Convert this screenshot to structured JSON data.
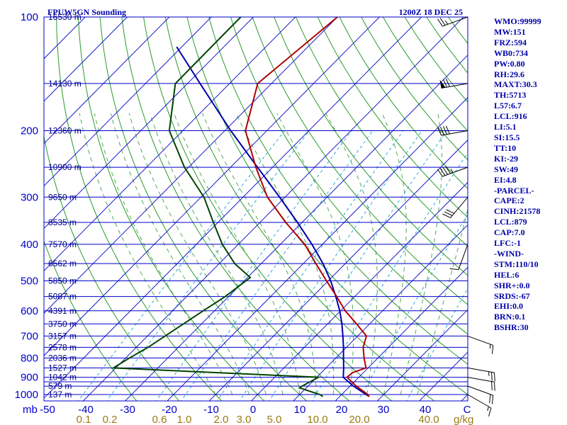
{
  "header": {
    "station": "FPUW5GN Sounding",
    "time": "1200Z 18 DEC 25"
  },
  "indices": [
    "WMO:99999",
    "MW:151",
    "FRZ:594",
    "WB0:734",
    "PW:0.80",
    "RH:29.6",
    "MAXT:30.3",
    "TH:5713",
    "L57:6.7",
    "LCL:916",
    "LI:5.1",
    "SI:15.5",
    "TT:10",
    "KI:-29",
    "SW:49",
    "EI:4.8",
    "-PARCEL-",
    "CAPE:2",
    "CINH:21578",
    "LCL:879",
    "CAP:7.0",
    "LFC:-1",
    "-WIND-",
    "STM:110/10",
    "HEL:6",
    "SHR+:0.0",
    "SRDS:-67",
    "EHI:0.0",
    "BRN:0.1",
    "BSHR:30"
  ],
  "colors": {
    "isobar": "#0000cc",
    "isotherm": "#1a1acc",
    "dry_adiabat": "#2a9a2a",
    "moist_adiabat": "#55aa55",
    "mixing_ratio": "#888888",
    "temperature": "#b00000",
    "dewpoint": "#004400",
    "parcel": "#0000aa",
    "height_label": "#000088",
    "tick_label": "#0000cc",
    "mixing_label": "#9a7a10",
    "wind": "#000000"
  },
  "chart_data": {
    "type": "skew-t",
    "pressure_axis": {
      "unit": "mb",
      "ticks": [
        100,
        200,
        300,
        400,
        500,
        600,
        700,
        800,
        900,
        1000
      ],
      "range": [
        100,
        1050
      ],
      "scale": "log"
    },
    "temperature_axis": {
      "unit": "C",
      "ticks": [
        -50,
        -40,
        -30,
        -20,
        -10,
        0,
        10,
        20,
        30,
        40
      ],
      "tick_labels": [
        "-50",
        "-40",
        "-30",
        "-20",
        "-10",
        "0",
        "10",
        "20",
        "30",
        "40",
        "C"
      ]
    },
    "mixing_ratio_axis": {
      "unit": "g/kg",
      "ticks": [
        0.1,
        0.2,
        0.6,
        1.0,
        2.0,
        3.0,
        5.0,
        10.0,
        20.0,
        40.0
      ],
      "tick_labels": [
        "0.1",
        "0.2",
        "0.6",
        "1.0",
        "2.0",
        "3.0",
        "5.0",
        "10.0",
        "20.0",
        "40.0"
      ],
      "end_label": "g/kg"
    },
    "height_labels": [
      {
        "p": 100,
        "label": "16530 m"
      },
      {
        "p": 150,
        "label": "14130 m"
      },
      {
        "p": 200,
        "label": "12360 m"
      },
      {
        "p": 250,
        "label": "10900 m"
      },
      {
        "p": 300,
        "label": "9650 m"
      },
      {
        "p": 350,
        "label": "8535 m"
      },
      {
        "p": 400,
        "label": "7570 m"
      },
      {
        "p": 450,
        "label": "6562 m"
      },
      {
        "p": 500,
        "label": "5850 m"
      },
      {
        "p": 550,
        "label": "5087 m"
      },
      {
        "p": 600,
        "label": "4391 m"
      },
      {
        "p": 650,
        "label": "3750 m"
      },
      {
        "p": 700,
        "label": "3157 m"
      },
      {
        "p": 750,
        "label": "2578 m"
      },
      {
        "p": 800,
        "label": "2036 m"
      },
      {
        "p": 850,
        "label": "1527 m"
      },
      {
        "p": 900,
        "label": "1042 m"
      },
      {
        "p": 950,
        "label": "579 m"
      },
      {
        "p": 1000,
        "label": "137 m"
      }
    ],
    "isobars": [
      100,
      150,
      200,
      250,
      300,
      350,
      400,
      450,
      500,
      550,
      600,
      650,
      700,
      750,
      800,
      850,
      900,
      925,
      950,
      1000
    ],
    "temperature": [
      {
        "p": 100,
        "t": -70.0
      },
      {
        "p": 150,
        "t": -73.3
      },
      {
        "p": 200,
        "t": -65.1
      },
      {
        "p": 250,
        "t": -54.0
      },
      {
        "p": 300,
        "t": -44.2
      },
      {
        "p": 350,
        "t": -33.9
      },
      {
        "p": 400,
        "t": -24.2
      },
      {
        "p": 450,
        "t": -17.0
      },
      {
        "p": 500,
        "t": -10.4
      },
      {
        "p": 550,
        "t": -4.3
      },
      {
        "p": 600,
        "t": 1.1
      },
      {
        "p": 650,
        "t": 6.9
      },
      {
        "p": 700,
        "t": 12.1
      },
      {
        "p": 750,
        "t": 14.0
      },
      {
        "p": 800,
        "t": 16.7
      },
      {
        "p": 850,
        "t": 19.5
      },
      {
        "p": 875,
        "t": 17.4
      },
      {
        "p": 900,
        "t": 17.2
      },
      {
        "p": 950,
        "t": 21.5
      },
      {
        "p": 1000,
        "t": 26.2
      },
      {
        "p": 1012,
        "t": 27.0
      }
    ],
    "dewpoint": [
      {
        "p": 100,
        "t": -93.0
      },
      {
        "p": 150,
        "t": -92.9
      },
      {
        "p": 200,
        "t": -83.2
      },
      {
        "p": 250,
        "t": -71.0
      },
      {
        "p": 300,
        "t": -59.3
      },
      {
        "p": 350,
        "t": -51.1
      },
      {
        "p": 400,
        "t": -43.8
      },
      {
        "p": 450,
        "t": -36.3
      },
      {
        "p": 490,
        "t": -29.3
      },
      {
        "p": 500,
        "t": -29.6
      },
      {
        "p": 550,
        "t": -30.8
      },
      {
        "p": 600,
        "t": -32.7
      },
      {
        "p": 650,
        "t": -34.3
      },
      {
        "p": 700,
        "t": -35.8
      },
      {
        "p": 750,
        "t": -37.2
      },
      {
        "p": 800,
        "t": -39.1
      },
      {
        "p": 850,
        "t": -40.6
      },
      {
        "p": 900,
        "t": 10.4
      },
      {
        "p": 950,
        "t": 8.6
      },
      {
        "p": 960,
        "t": 8.4
      },
      {
        "p": 1000,
        "t": 14.8
      },
      {
        "p": 1012,
        "t": 16.0
      }
    ],
    "parcel": [
      {
        "p": 1012,
        "t": 27.0
      },
      {
        "p": 950,
        "t": 20.8
      },
      {
        "p": 900,
        "t": 16.3
      },
      {
        "p": 850,
        "t": 14.2
      },
      {
        "p": 800,
        "t": 11.8
      },
      {
        "p": 750,
        "t": 9.3
      },
      {
        "p": 700,
        "t": 6.5
      },
      {
        "p": 650,
        "t": 3.4
      },
      {
        "p": 600,
        "t": -0.2
      },
      {
        "p": 550,
        "t": -4.5
      },
      {
        "p": 500,
        "t": -9.4
      },
      {
        "p": 450,
        "t": -15.3
      },
      {
        "p": 400,
        "t": -22.5
      },
      {
        "p": 350,
        "t": -31.1
      },
      {
        "p": 300,
        "t": -41.3
      },
      {
        "p": 250,
        "t": -53.6
      },
      {
        "p": 200,
        "t": -68.6
      },
      {
        "p": 150,
        "t": -87.0
      },
      {
        "p": 120,
        "t": -101.2
      }
    ],
    "wind_barbs": [
      {
        "p": 100,
        "dir": 250,
        "speed": 25
      },
      {
        "p": 150,
        "dir": 260,
        "speed": 70
      },
      {
        "p": 200,
        "dir": 260,
        "speed": 40
      },
      {
        "p": 250,
        "dir": 250,
        "speed": 45
      },
      {
        "p": 300,
        "dir": 220,
        "speed": 30
      },
      {
        "p": 400,
        "dir": 200,
        "speed": 10
      },
      {
        "p": 700,
        "dir": 110,
        "speed": 15
      },
      {
        "p": 850,
        "dir": 100,
        "speed": 25
      },
      {
        "p": 900,
        "dir": 100,
        "speed": 20
      },
      {
        "p": 950,
        "dir": 110,
        "speed": 20
      },
      {
        "p": 1000,
        "dir": 120,
        "speed": 15
      }
    ]
  }
}
